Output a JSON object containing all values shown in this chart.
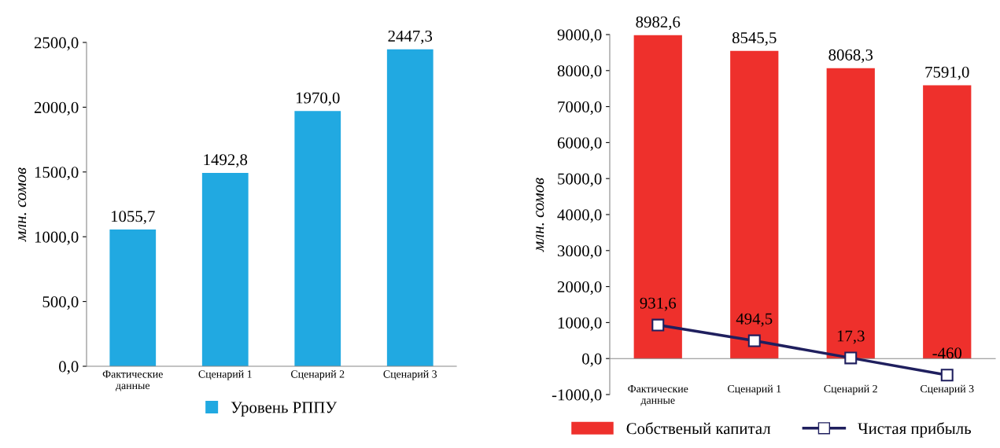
{
  "chart_data": [
    {
      "type": "bar",
      "ylabel": "млн. сомов",
      "categories": [
        "Фактические\nданные",
        "Сценарий 1",
        "Сценарий 2",
        "Сценарий 3"
      ],
      "series": [
        {
          "name": "Уровень РППУ",
          "color": "#21a9e1",
          "values": [
            1055.7,
            1492.8,
            1970.0,
            2447.3
          ],
          "value_labels": [
            "1055,7",
            "1492,8",
            "1970,0",
            "2447,3"
          ]
        }
      ],
      "ylim": [
        0,
        2500
      ],
      "yticks": [
        {
          "value": 0,
          "label": "0,0"
        },
        {
          "value": 500,
          "label": "500,0"
        },
        {
          "value": 1000,
          "label": "1000,0"
        },
        {
          "value": 1500,
          "label": "1500,0"
        },
        {
          "value": 2000,
          "label": "2000,0"
        },
        {
          "value": 2500,
          "label": "2500,0"
        }
      ],
      "grid": false,
      "legend": "bottom"
    },
    {
      "type": "bar",
      "ylabel": "млн. сомов",
      "categories": [
        "Фактические\nданные",
        "Сценарий 1",
        "Сценарий 2",
        "Сценарий 3"
      ],
      "series": [
        {
          "name": "Собственый капитал",
          "type": "bar",
          "color": "#ee302c",
          "values": [
            8982.6,
            8545.5,
            8068.3,
            7591.0
          ],
          "value_labels": [
            "8982,6",
            "8545,5",
            "8068,3",
            "7591,0"
          ]
        },
        {
          "name": "Чистая прибыль",
          "type": "line",
          "color": "#1f1f5e",
          "marker": "square",
          "line_style": "solid",
          "values": [
            931.6,
            494.5,
            17.3,
            -460
          ],
          "value_labels": [
            "931,6",
            "494,5",
            "17,3",
            "-460"
          ]
        }
      ],
      "ylim": [
        -1000,
        9000
      ],
      "yticks": [
        {
          "value": -1000,
          "label": "-1000,0"
        },
        {
          "value": 0,
          "label": "0,0"
        },
        {
          "value": 1000,
          "label": "1000,0"
        },
        {
          "value": 2000,
          "label": "2000,0"
        },
        {
          "value": 3000,
          "label": "3000,0"
        },
        {
          "value": 4000,
          "label": "4000,0"
        },
        {
          "value": 5000,
          "label": "5000,0"
        },
        {
          "value": 6000,
          "label": "6000,0"
        },
        {
          "value": 7000,
          "label": "7000,0"
        },
        {
          "value": 8000,
          "label": "8000,0"
        },
        {
          "value": 9000,
          "label": "9000,0"
        }
      ],
      "grid": false,
      "legend": "bottom"
    }
  ]
}
